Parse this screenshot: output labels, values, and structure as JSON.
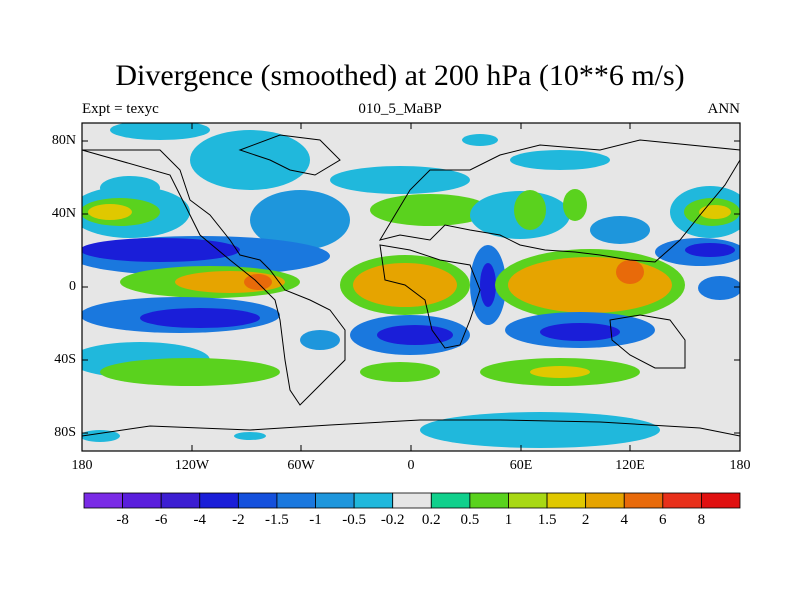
{
  "figure": {
    "title": "Divergence (smoothed) at 200 hPa (10**6 m/s)",
    "left_string": "Expt = texyc",
    "center_string": "010_5_MaBP",
    "right_string": "ANN"
  },
  "axes": {
    "x_ticks": [
      "180",
      "120W",
      "60W",
      "0",
      "60E",
      "120E",
      "180"
    ],
    "y_ticks": [
      "80N",
      "40N",
      "0",
      "40S",
      "80S"
    ]
  },
  "colorbar": {
    "labels": [
      "-8",
      "-6",
      "-4",
      "-2",
      "-1.5",
      "-1",
      "-0.5",
      "-0.2",
      "0.2",
      "0.5",
      "1",
      "1.5",
      "2",
      "4",
      "6",
      "8"
    ],
    "colors": [
      "#7a2be6",
      "#5a1edc",
      "#3c1ed2",
      "#1a1ed8",
      "#1450dc",
      "#1a78de",
      "#1e96dc",
      "#20b8dc",
      "#e6e6e6",
      "#10d08c",
      "#5ad21e",
      "#a8d814",
      "#e0c800",
      "#e6a400",
      "#e86a0a",
      "#e8301a",
      "#e01010"
    ]
  },
  "colors": {
    "background": "#e6e6e6",
    "coastline": "#000000"
  }
}
